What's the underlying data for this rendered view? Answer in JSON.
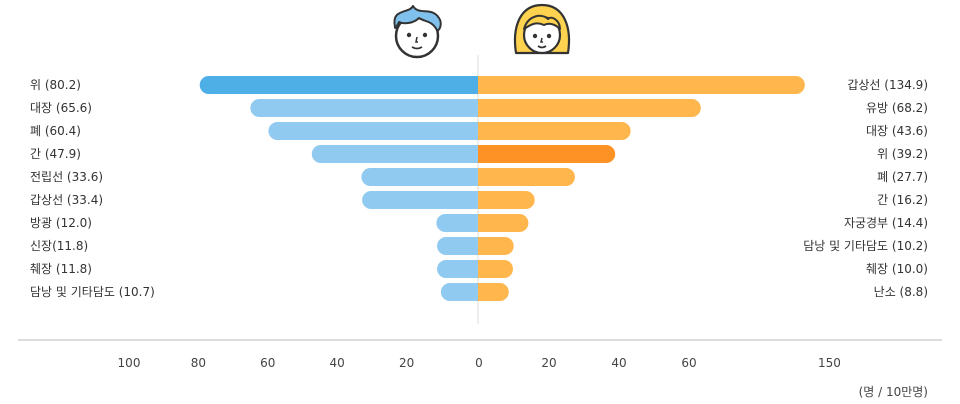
{
  "chart_data": {
    "type": "bar",
    "orientation": "horizontal-butterfly",
    "colors": {
      "male": "#90caf0",
      "male_highlight": "#4eaee6",
      "female": "#ffb74d",
      "female_highlight": "#ff9224",
      "axis": "#bbbbbb"
    },
    "series": [
      {
        "name": "",
        "icon": "boy-face-icon",
        "highlight_index": 0,
        "categories": [
          "위",
          "대장",
          "폐",
          "간",
          "전립선",
          "갑상선",
          "방광",
          "신장",
          "췌장",
          "담낭 및 기타담도"
        ],
        "labels": [
          "위 (80.2)",
          "대장 (65.6)",
          "폐 (60.4)",
          "간 (47.9)",
          "전립선 (33.6)",
          "갑상선 (33.4)",
          "방광 (12.0)",
          "신장(11.8)",
          "췌장 (11.8)",
          "담낭 및 기타담도 (10.7)"
        ],
        "values": [
          80.2,
          65.6,
          60.4,
          47.9,
          33.6,
          33.4,
          12.0,
          11.8,
          11.8,
          10.7
        ]
      },
      {
        "name": "",
        "icon": "girl-face-icon",
        "highlight_index": 3,
        "categories": [
          "갑상선",
          "유방",
          "대장",
          "위",
          "폐",
          "간",
          "자궁경부",
          "담낭 및 기타담도",
          "췌장",
          "난소"
        ],
        "labels": [
          "갑상선 (134.9)",
          "유방 (68.2)",
          "대장 (43.6)",
          "위 (39.2)",
          "폐 (27.7)",
          "간 (16.2)",
          "자궁경부 (14.4)",
          "담낭 및 기타담도 (10.2)",
          "췌장 (10.0)",
          "난소 (8.8)"
        ],
        "values": [
          134.9,
          68.2,
          43.6,
          39.2,
          27.7,
          16.2,
          14.4,
          10.2,
          10.0,
          8.8
        ]
      }
    ],
    "x_ticks_left": [
      "100",
      "80",
      "60",
      "40",
      "20"
    ],
    "x_ticks_left_values": [
      100,
      80,
      60,
      40,
      20
    ],
    "x_ticks_right": [
      "0",
      "20",
      "40",
      "60",
      "150"
    ],
    "x_ticks_right_values": [
      0,
      20,
      40,
      60,
      150
    ],
    "unit_label": "(명 / 10만명)"
  }
}
